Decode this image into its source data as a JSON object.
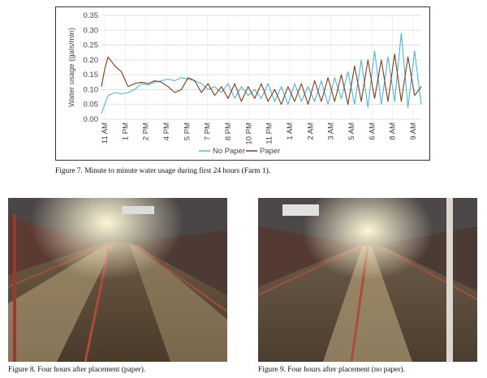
{
  "figure7": {
    "caption": "Figure 7.  Minute to minute water usage during first 24 hours (Farm 1)."
  },
  "figure8": {
    "caption": "Figure 8.  Four hours after placement (paper)."
  },
  "figure9": {
    "caption": "Figure 9.  Four hours after placement (no paper)."
  },
  "colors": {
    "no_paper": "#4fb3d9",
    "paper": "#7a3e1a"
  },
  "chart_data": {
    "type": "line",
    "ylabel": "Water usage (gals/min)",
    "xlabel": "",
    "ylim": [
      0,
      0.35
    ],
    "y_ticks": [
      "0.00",
      "0.05",
      "0.10",
      "0.15",
      "0.20",
      "0.25",
      "0.30",
      "0.35"
    ],
    "x_ticks": [
      "11 AM",
      "1 PM",
      "2 PM",
      "4 PM",
      "5 PM",
      "7 PM",
      "8 PM",
      "10 PM",
      "11 PM",
      "1 AM",
      "2 AM",
      "3 AM",
      "5 AM",
      "6 AM",
      "8 AM",
      "9 AM"
    ],
    "legend_position": "bottom-center",
    "series": [
      {
        "name": "No Paper",
        "x": [
          0,
          0.5,
          1,
          1.5,
          2,
          2.5,
          3,
          3.5,
          4,
          4.5,
          5,
          5.5,
          6,
          6.5,
          7,
          7.5,
          8,
          8.5,
          9,
          9.5,
          10,
          10.5,
          11,
          11.5,
          12,
          12.5,
          13,
          13.5,
          14,
          14.5,
          15,
          15.5,
          16,
          16.5,
          17,
          17.5,
          18,
          18.5,
          19,
          19.5,
          20,
          20.5,
          21,
          21.5,
          22,
          22.5,
          23,
          23.5,
          24
        ],
        "values": [
          0.02,
          0.08,
          0.09,
          0.085,
          0.09,
          0.1,
          0.12,
          0.115,
          0.125,
          0.13,
          0.135,
          0.13,
          0.14,
          0.135,
          0.13,
          0.12,
          0.1,
          0.11,
          0.09,
          0.12,
          0.07,
          0.11,
          0.08,
          0.1,
          0.07,
          0.12,
          0.06,
          0.11,
          0.05,
          0.12,
          0.06,
          0.11,
          0.06,
          0.13,
          0.05,
          0.14,
          0.07,
          0.16,
          0.05,
          0.2,
          0.04,
          0.23,
          0.05,
          0.21,
          0.06,
          0.29,
          0.04,
          0.23,
          0.05
        ]
      },
      {
        "name": "Paper",
        "x": [
          0,
          0.25,
          0.5,
          1,
          1.5,
          2,
          2.5,
          3,
          3.5,
          4,
          4.5,
          5,
          5.5,
          6,
          6.5,
          7,
          7.5,
          8,
          8.5,
          9,
          9.5,
          10,
          10.5,
          11,
          11.5,
          12,
          12.5,
          13,
          13.5,
          14,
          14.5,
          15,
          15.5,
          16,
          16.5,
          17,
          17.5,
          18,
          18.5,
          19,
          19.5,
          20,
          20.5,
          21,
          21.5,
          22,
          22.5,
          23,
          23.5,
          24
        ],
        "values": [
          0.11,
          0.17,
          0.21,
          0.18,
          0.16,
          0.11,
          0.12,
          0.125,
          0.12,
          0.13,
          0.125,
          0.11,
          0.09,
          0.1,
          0.14,
          0.13,
          0.09,
          0.12,
          0.08,
          0.11,
          0.07,
          0.12,
          0.06,
          0.11,
          0.07,
          0.12,
          0.06,
          0.1,
          0.05,
          0.11,
          0.06,
          0.12,
          0.05,
          0.13,
          0.06,
          0.14,
          0.06,
          0.15,
          0.05,
          0.18,
          0.06,
          0.2,
          0.07,
          0.2,
          0.06,
          0.22,
          0.06,
          0.21,
          0.08,
          0.11
        ]
      }
    ]
  }
}
